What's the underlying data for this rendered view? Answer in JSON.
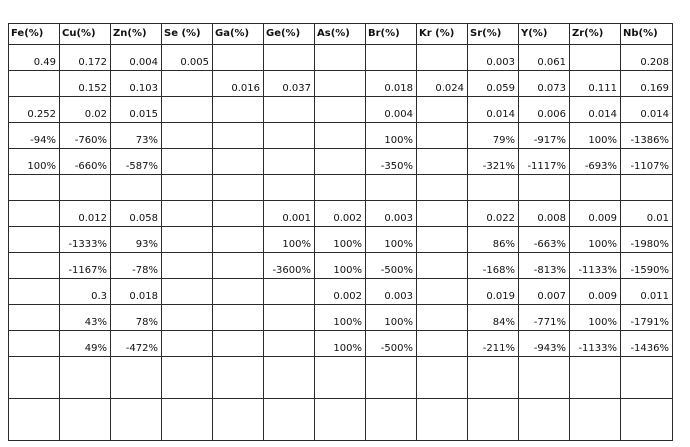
{
  "headers": [
    "Fe(%)",
    "Cu(%)",
    "Zn(%)",
    "Se (%)",
    "Ga(%)",
    "Ge(%)",
    "As(%)",
    "Br(%)",
    "Kr (%)",
    "Sr(%)",
    "Y(%)",
    "Zr(%)",
    "Nb(%)"
  ],
  "rows": [
    [
      "0.49",
      "0.172",
      "0.004",
      "0.005",
      "",
      "",
      "",
      "",
      "",
      "0.003",
      "0.061",
      "",
      "0.208"
    ],
    [
      "",
      "0.152",
      "0.103",
      "",
      "0.016",
      "0.037",
      "",
      "0.018",
      "0.024",
      "0.059",
      "0.073",
      "0.111",
      "0.169"
    ],
    [
      "0.252",
      "0.02",
      "0.015",
      "",
      "",
      "",
      "",
      "0.004",
      "",
      "0.014",
      "0.006",
      "0.014",
      "0.014"
    ],
    [
      "-94%",
      "-760%",
      "73%",
      "",
      "",
      "",
      "",
      "100%",
      "",
      "79%",
      "-917%",
      "100%",
      "-1386%"
    ],
    [
      "100%",
      "-660%",
      "-587%",
      "",
      "",
      "",
      "",
      "-350%",
      "",
      "-321%",
      "-1117%",
      "-693%",
      "-1107%"
    ],
    [
      "",
      "",
      "",
      "",
      "",
      "",
      "",
      "",
      "",
      "",
      "",
      "",
      ""
    ],
    [
      "",
      "0.012",
      "0.058",
      "",
      "",
      "0.001",
      "0.002",
      "0.003",
      "",
      "0.022",
      "0.008",
      "0.009",
      "0.01"
    ],
    [
      "",
      "-1333%",
      "93%",
      "",
      "",
      "100%",
      "100%",
      "100%",
      "",
      "86%",
      "-663%",
      "100%",
      "-1980%"
    ],
    [
      "",
      "-1167%",
      "-78%",
      "",
      "",
      "-3600%",
      "100%",
      "-500%",
      "",
      "-168%",
      "-813%",
      "-1133%",
      "-1590%"
    ],
    [
      "",
      "0.3",
      "0.018",
      "",
      "",
      "",
      "0.002",
      "0.003",
      "",
      "0.019",
      "0.007",
      "0.009",
      "0.011"
    ],
    [
      "",
      "43%",
      "78%",
      "",
      "",
      "",
      "100%",
      "100%",
      "",
      "84%",
      "-771%",
      "100%",
      "-1791%"
    ],
    [
      "",
      "49%",
      "-472%",
      "",
      "",
      "",
      "100%",
      "-500%",
      "",
      "-211%",
      "-943%",
      "-1133%",
      "-1436%"
    ],
    [
      "",
      "",
      "",
      "",
      "",
      "",
      "",
      "",
      "",
      "",
      "",
      "",
      ""
    ],
    [
      "",
      "",
      "",
      "",
      "",
      "",
      "",
      "",
      "",
      "",
      "",
      "",
      ""
    ]
  ]
}
